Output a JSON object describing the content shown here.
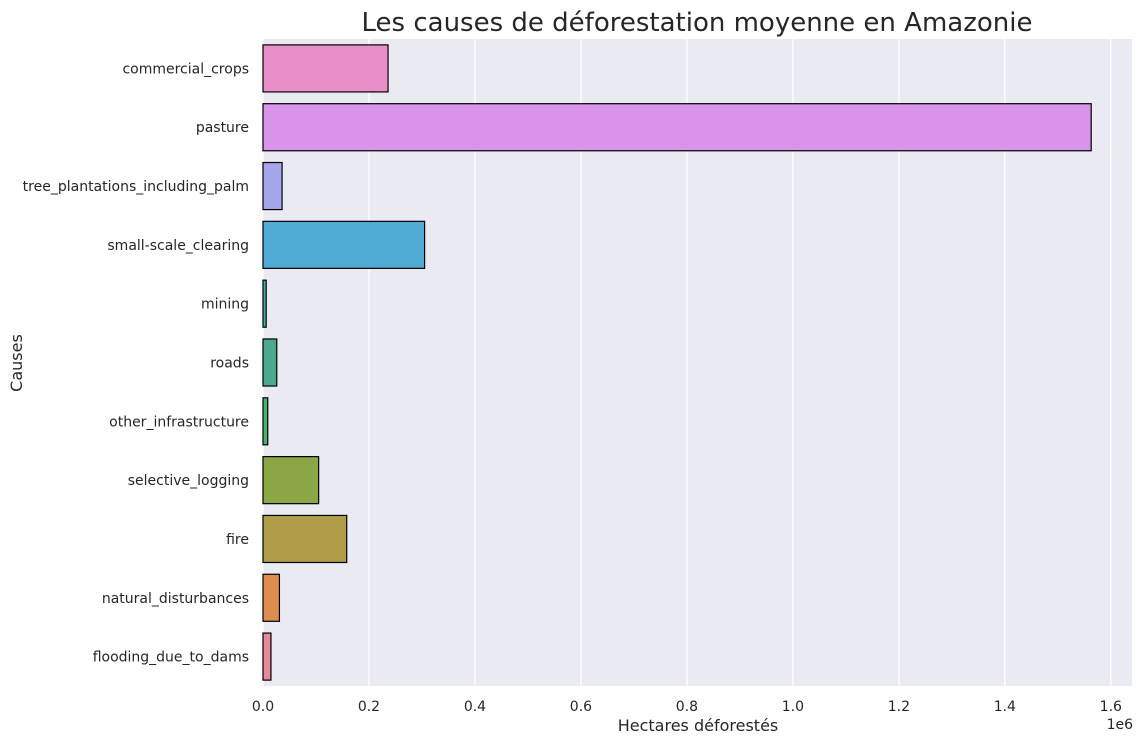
{
  "chart_data": {
    "type": "bar",
    "orientation": "horizontal",
    "title": "Les causes de déforestation moyenne en Amazonie",
    "xlabel": "Hectares déforestés",
    "ylabel": "Causes",
    "x_scale_label": "1e6",
    "xlim": [
      0,
      1.64
    ],
    "x_ticks": [
      "0.0",
      "0.2",
      "0.4",
      "0.6",
      "0.8",
      "1.0",
      "1.2",
      "1.4",
      "1.6"
    ],
    "grid": true,
    "categories": [
      "commercial_crops",
      "pasture",
      "tree_plantations_including_palm",
      "small-scale_clearing",
      "mining",
      "roads",
      "other_infrastructure",
      "selective_logging",
      "fire",
      "natural_disturbances",
      "flooding_due_to_dams"
    ],
    "values": [
      236000,
      1563000,
      36000,
      305000,
      6000,
      26000,
      9000,
      105000,
      158000,
      31000,
      15000
    ],
    "colors": [
      "#E88FC9",
      "#D794E8",
      "#A6A7EA",
      "#4FABD3",
      "#49AEA8",
      "#4BA98D",
      "#47B26A",
      "#8AA645",
      "#B09D47",
      "#DD8D4E",
      "#E48A98"
    ],
    "background_color": "#EAEAF2",
    "grid_color": "#FFFFFF",
    "edge_color": "#000000"
  }
}
